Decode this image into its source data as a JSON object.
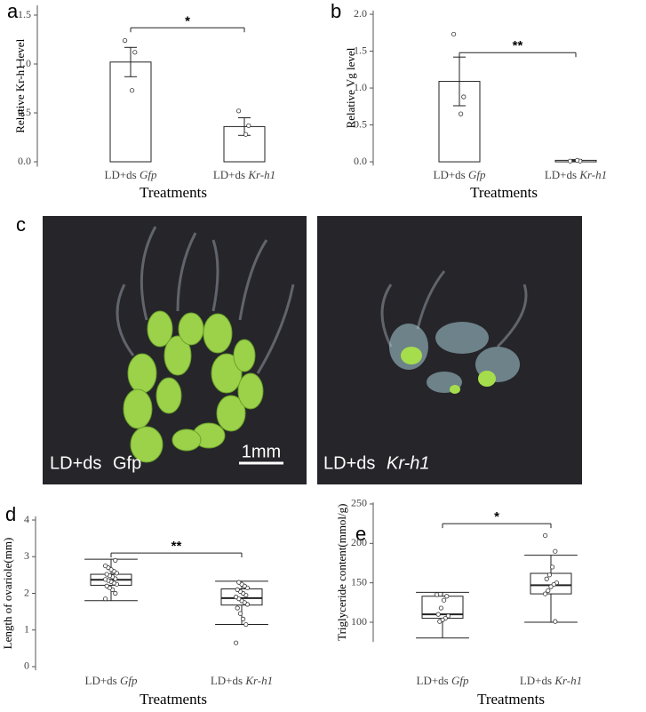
{
  "chart_data": [
    {
      "type": "bar",
      "panel": "a",
      "ylabel": "Relative Kr-h1 level",
      "xlabel": "Treatments",
      "categories": [
        "LD+ds Gfp",
        "LD+ds Kr-h1"
      ],
      "values": [
        1.02,
        0.36
      ],
      "errors": [
        0.15,
        0.09
      ],
      "points": [
        [
          1.24,
          1.12,
          0.73
        ],
        [
          0.52,
          0.37,
          0.28
        ]
      ],
      "ylim": [
        -0.05,
        1.6
      ],
      "yticks": [
        {
          "value": 0,
          "label": "0.0"
        },
        {
          "value": 0.5,
          "label": "0.5"
        },
        {
          "value": 1,
          "label": "1.0"
        },
        {
          "value": 1.5,
          "label": "1.5"
        }
      ],
      "significance": {
        "label": "*",
        "y": 1.37
      }
    },
    {
      "type": "bar",
      "panel": "b",
      "ylabel": "Relative Vg level",
      "xlabel": "Treatments",
      "categories": [
        "LD+ds Gfp",
        "LD+ds Kr-h1"
      ],
      "values": [
        1.09,
        0.02
      ],
      "errors": [
        0.33,
        0.01
      ],
      "points": [
        [
          1.73,
          0.88,
          0.65
        ],
        [
          0.01,
          0.01,
          0.02
        ]
      ],
      "ylim": [
        -0.05,
        2.05
      ],
      "yticks": [
        {
          "value": 0,
          "label": "0.0"
        },
        {
          "value": 0.5,
          "label": "0.5"
        },
        {
          "value": 1,
          "label": "1.0"
        },
        {
          "value": 1.5,
          "label": "1.5"
        },
        {
          "value": 2,
          "label": "2.0"
        }
      ],
      "significance": {
        "label": "**",
        "y": 1.48
      }
    },
    {
      "type": "box",
      "panel": "d",
      "ylabel": "Length of ovariole(mm)",
      "xlabel": "Treatments",
      "categories": [
        "LD+ds Gfp",
        "LD+ds Kr-h1"
      ],
      "boxes": [
        {
          "whisker_low": 1.8,
          "q1": 2.22,
          "median": 2.37,
          "q3": 2.52,
          "whisker_high": 2.93,
          "points": [
            1.85,
            2.0,
            2.1,
            2.15,
            2.2,
            2.25,
            2.28,
            2.32,
            2.35,
            2.38,
            2.4,
            2.45,
            2.48,
            2.52,
            2.55,
            2.6,
            2.65,
            2.7,
            2.75,
            2.9
          ]
        },
        {
          "whisker_low": 1.15,
          "q1": 1.68,
          "median": 1.87,
          "q3": 2.12,
          "whisker_high": 2.33,
          "points": [
            0.65,
            1.15,
            1.3,
            1.45,
            1.6,
            1.7,
            1.75,
            1.8,
            1.85,
            1.9,
            1.95,
            2.0,
            2.05,
            2.1,
            2.15,
            2.2,
            2.25,
            2.3
          ]
        }
      ],
      "ylim": [
        -0.1,
        4.1
      ],
      "yticks": [
        0,
        1,
        2,
        3,
        4
      ],
      "significance": {
        "label": "**",
        "y": 3.1
      }
    },
    {
      "type": "box",
      "panel": "e",
      "ylabel": "Triglyceride content(mmol/g)",
      "xlabel": "Treatments",
      "categories": [
        "LD+ds Gfp",
        "LD+ds Kr-h1"
      ],
      "boxes": [
        {
          "whisker_low": 80,
          "q1": 105,
          "median": 110,
          "q3": 133,
          "whisker_high": 138,
          "points": [
            135,
            133,
            128,
            118,
            110,
            108,
            105,
            103,
            101
          ]
        },
        {
          "whisker_low": 100,
          "q1": 136,
          "median": 147,
          "q3": 162,
          "whisker_high": 185,
          "points": [
            210,
            190,
            170,
            160,
            155,
            150,
            148,
            145,
            140,
            136,
            101
          ]
        }
      ],
      "ylim": [
        75,
        252
      ],
      "yticks": [
        100,
        150,
        200,
        250
      ],
      "significance": {
        "label": "*",
        "y": 225
      }
    }
  ],
  "figure_c": {
    "panel": "c",
    "images": [
      {
        "prefix": "LD+ds",
        "gene": "Gfp"
      },
      {
        "prefix": "LD+ds",
        "gene": "Kr-h1"
      }
    ],
    "scale_bar": "1mm"
  }
}
